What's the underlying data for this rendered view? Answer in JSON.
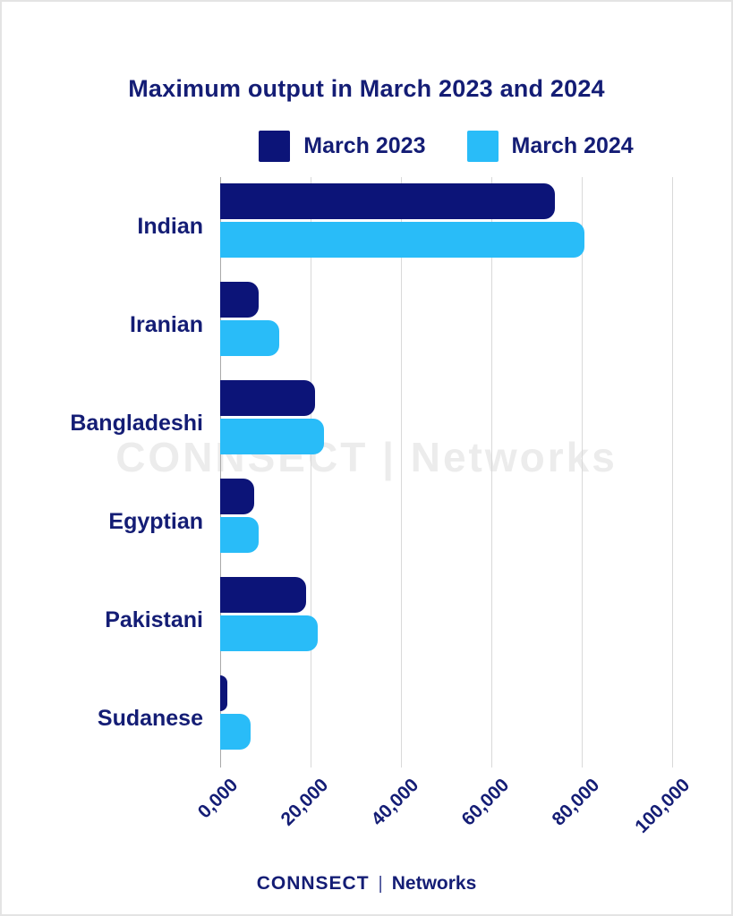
{
  "title": "Maximum output in March 2023 and 2024",
  "legend": [
    {
      "label": "March 2023",
      "color": "#0c1478"
    },
    {
      "label": "March 2024",
      "color": "#29bcf8"
    }
  ],
  "watermark": {
    "text": "CONNSECT | Networks"
  },
  "footer": {
    "brand": "CONNSECT",
    "separator": "|",
    "name": "Networks"
  },
  "colors": {
    "text_navy": "#141d75",
    "bar_2023": "#0c1478",
    "bar_2024": "#29bcf8",
    "gridline": "#d9d9d9",
    "axis_line": "#a9a9a9",
    "watermark_gray": "#ececec",
    "background": "#ffffff"
  },
  "chart_data": {
    "type": "bar",
    "orientation": "horizontal",
    "title": "Maximum output in March 2023 and 2024",
    "categories": [
      "Indian",
      "Iranian",
      "Bangladeshi",
      "Egyptian",
      "Pakistani",
      "Sudanese"
    ],
    "series": [
      {
        "name": "March 2023",
        "color": "#0c1478",
        "values": [
          74000,
          8500,
          21000,
          7500,
          19000,
          1600
        ]
      },
      {
        "name": "March 2024",
        "color": "#29bcf8",
        "values": [
          80500,
          13000,
          23000,
          8500,
          21500,
          6700
        ]
      }
    ],
    "xlabel": "",
    "ylabel": "",
    "xlim": [
      0,
      100000
    ],
    "x_ticks": [
      0,
      20000,
      40000,
      60000,
      80000,
      100000
    ],
    "x_tick_labels": [
      "0,000",
      "20,000",
      "40,000",
      "60,000",
      "80,000",
      "100,000"
    ],
    "grid": "vertical",
    "legend_position": "top-center"
  }
}
